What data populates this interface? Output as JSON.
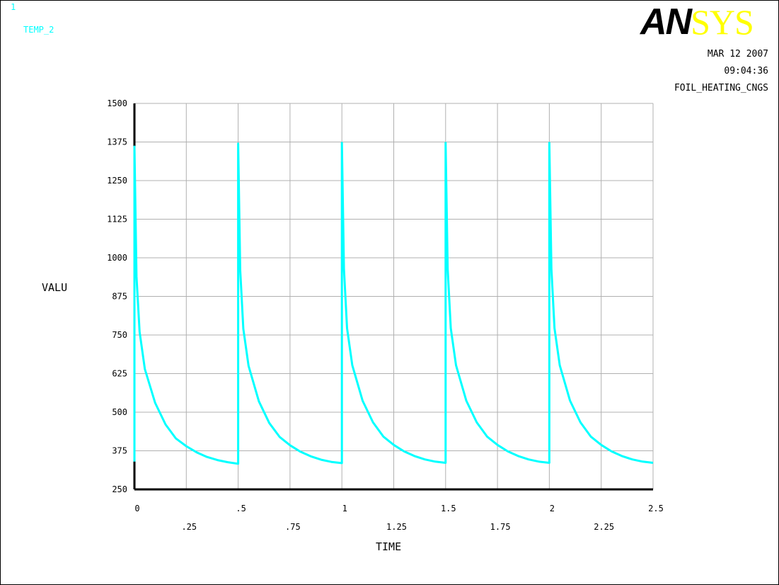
{
  "window_number": "1",
  "plot_variable": "TEMP_2",
  "logo": {
    "part1": "AN",
    "part2": "SYS"
  },
  "date": "MAR 12 2007",
  "time": "09:04:36",
  "jobname": "FOIL_HEATING_CNGS",
  "colors": {
    "curve": "#00FFFF",
    "grid": "#B0B0B0",
    "axis": "#000000",
    "logo_accent": "#FFFF00"
  },
  "chart_data": {
    "type": "line",
    "title": "",
    "xlabel": "TIME",
    "ylabel": "VALU",
    "xlim": [
      0,
      2.5
    ],
    "ylim": [
      250,
      1500
    ],
    "grid": true,
    "x_ticks": [
      "0",
      ".25",
      ".5",
      ".75",
      "1",
      "1.25",
      "1.5",
      "1.75",
      "2",
      "2.25",
      "2.5"
    ],
    "y_ticks": [
      "250",
      "375",
      "500",
      "625",
      "750",
      "875",
      "1000",
      "1125",
      "1250",
      "1375",
      "1500"
    ],
    "series": [
      {
        "name": "TEMP_2",
        "x": [
          0,
          0,
          0.01,
          0.025,
          0.05,
          0.1,
          0.15,
          0.2,
          0.25,
          0.3,
          0.35,
          0.4,
          0.45,
          0.5,
          0.5,
          0.51,
          0.525,
          0.55,
          0.6,
          0.65,
          0.7,
          0.75,
          0.8,
          0.85,
          0.9,
          0.95,
          1.0,
          1.0,
          1.01,
          1.025,
          1.05,
          1.1,
          1.15,
          1.2,
          1.25,
          1.3,
          1.35,
          1.4,
          1.45,
          1.5,
          1.5,
          1.51,
          1.525,
          1.55,
          1.6,
          1.65,
          1.7,
          1.75,
          1.8,
          1.85,
          1.9,
          1.95,
          2.0,
          2.0,
          2.01,
          2.025,
          2.05,
          2.1,
          2.15,
          2.2,
          2.25,
          2.3,
          2.35,
          2.4,
          2.45,
          2.5
        ],
        "y": [
          340,
          1360,
          940,
          760,
          640,
          530,
          460,
          415,
          390,
          370,
          355,
          345,
          338,
          333,
          1370,
          960,
          770,
          650,
          535,
          465,
          420,
          393,
          372,
          357,
          346,
          339,
          335,
          1372,
          965,
          772,
          652,
          537,
          467,
          421,
          394,
          373,
          358,
          347,
          340,
          336,
          1372,
          965,
          772,
          652,
          537,
          467,
          421,
          394,
          373,
          358,
          347,
          340,
          336,
          1372,
          965,
          772,
          652,
          537,
          467,
          421,
          394,
          373,
          358,
          347,
          340,
          336
        ]
      }
    ]
  }
}
